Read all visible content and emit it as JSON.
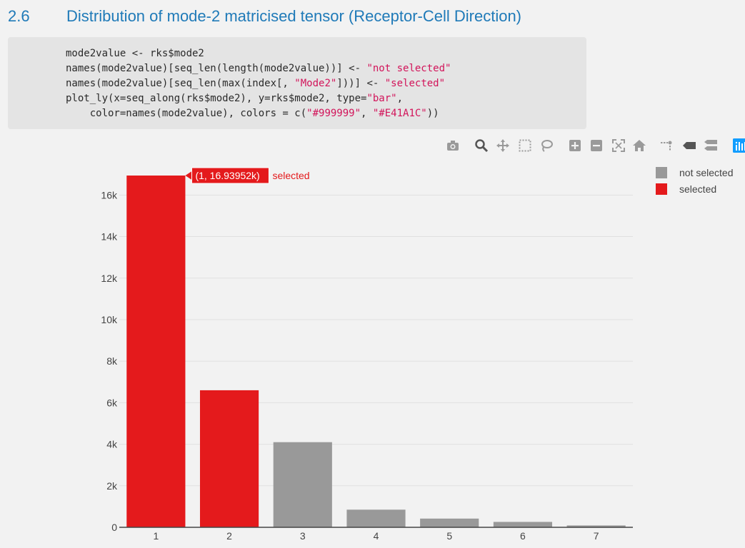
{
  "section": {
    "number": "2.6",
    "title": "Distribution of mode-2 matricised tensor (Receptor-Cell Direction)"
  },
  "code": {
    "lines": [
      [
        {
          "t": "mode2value <- rks$mode2",
          "s": false
        }
      ],
      [
        {
          "t": "names(mode2value)[seq_len(length(mode2value))] <- ",
          "s": false
        },
        {
          "t": "\"not selected\"",
          "s": true
        }
      ],
      [
        {
          "t": "names(mode2value)[seq_len(max(index[, ",
          "s": false
        },
        {
          "t": "\"Mode2\"",
          "s": true
        },
        {
          "t": "]))] <- ",
          "s": false
        },
        {
          "t": "\"selected\"",
          "s": true
        }
      ],
      [
        {
          "t": "plot_ly(x=seq_along(rks$mode2), y=rks$mode2, type=",
          "s": false
        },
        {
          "t": "\"bar\"",
          "s": true
        },
        {
          "t": ",",
          "s": false
        }
      ],
      [
        {
          "t": "    color=names(mode2value), colors = c(",
          "s": false
        },
        {
          "t": "\"#999999\"",
          "s": true
        },
        {
          "t": ", ",
          "s": false
        },
        {
          "t": "\"#E41A1C\"",
          "s": true
        },
        {
          "t": "))",
          "s": false
        }
      ]
    ]
  },
  "modebar": {
    "buttons": [
      {
        "name": "camera-icon",
        "color": "#9a9a9a"
      },
      {
        "name": "zoom-icon",
        "color": "#555555"
      },
      {
        "name": "pan-icon",
        "color": "#9a9a9a"
      },
      {
        "name": "box-select-icon",
        "color": "#9a9a9a"
      },
      {
        "name": "lasso-icon",
        "color": "#9a9a9a"
      },
      {
        "name": "zoom-in-icon",
        "color": "#9a9a9a"
      },
      {
        "name": "zoom-out-icon",
        "color": "#9a9a9a"
      },
      {
        "name": "autoscale-icon",
        "color": "#9a9a9a"
      },
      {
        "name": "home-icon",
        "color": "#9a9a9a"
      },
      {
        "name": "spikelines-icon",
        "color": "#9a9a9a"
      },
      {
        "name": "hover-closest-icon",
        "color": "#555555"
      },
      {
        "name": "hover-compare-icon",
        "color": "#9a9a9a"
      },
      {
        "name": "plotly-logo-icon",
        "color": "#119dff"
      }
    ]
  },
  "chart_data": {
    "type": "bar",
    "categories": [
      "1",
      "2",
      "3",
      "4",
      "5",
      "6",
      "7"
    ],
    "values": [
      16939.52,
      6600,
      4100,
      850,
      420,
      260,
      90
    ],
    "series_assignment": [
      "selected",
      "selected",
      "not selected",
      "not selected",
      "not selected",
      "not selected",
      "not selected"
    ],
    "legend": [
      {
        "name": "not selected",
        "color": "#999999"
      },
      {
        "name": "selected",
        "color": "#E41A1C"
      }
    ],
    "legend_position": "top-right",
    "yticks": [
      0,
      2000,
      4000,
      6000,
      8000,
      10000,
      12000,
      14000,
      16000
    ],
    "ytick_labels": [
      "0",
      "2k",
      "4k",
      "6k",
      "8k",
      "10k",
      "12k",
      "14k",
      "16k"
    ],
    "ylim": [
      0,
      16939.52
    ],
    "grid": true,
    "hover": {
      "bar_index": 0,
      "label": "(1, 16.93952k)",
      "series": "selected",
      "color": "#E41A1C"
    }
  }
}
